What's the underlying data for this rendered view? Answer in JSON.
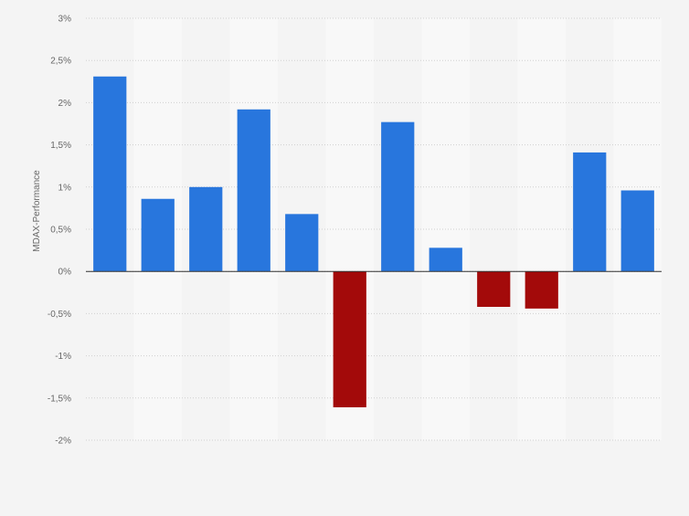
{
  "chart_data": {
    "type": "bar",
    "title": "",
    "xlabel": "",
    "ylabel": "MDAX-Performance",
    "ylim": [
      -2,
      3
    ],
    "yticks": [
      3,
      2.5,
      2,
      1.5,
      1,
      0.5,
      0,
      -0.5,
      -1,
      -1.5,
      -2
    ],
    "ytick_labels": [
      "3%",
      "2,5%",
      "2%",
      "1,5%",
      "1%",
      "0,5%",
      "0%",
      "-0,5%",
      "-1%",
      "-1,5%",
      "-2%"
    ],
    "categories": [
      "",
      "",
      "",
      "",
      "",
      "",
      "",
      "",
      "",
      "",
      "",
      ""
    ],
    "values": [
      2.31,
      0.86,
      1.0,
      1.92,
      0.68,
      -1.61,
      1.77,
      0.28,
      -0.42,
      -0.44,
      1.41,
      0.96
    ],
    "grid": true,
    "legend": "none",
    "colors": {
      "positive": "#2876dd",
      "negative": "#a30a0a",
      "background": "#f4f4f4",
      "band": "#f8f8f8",
      "grid": "#d0d0d0",
      "zero_line": "#333333"
    }
  }
}
